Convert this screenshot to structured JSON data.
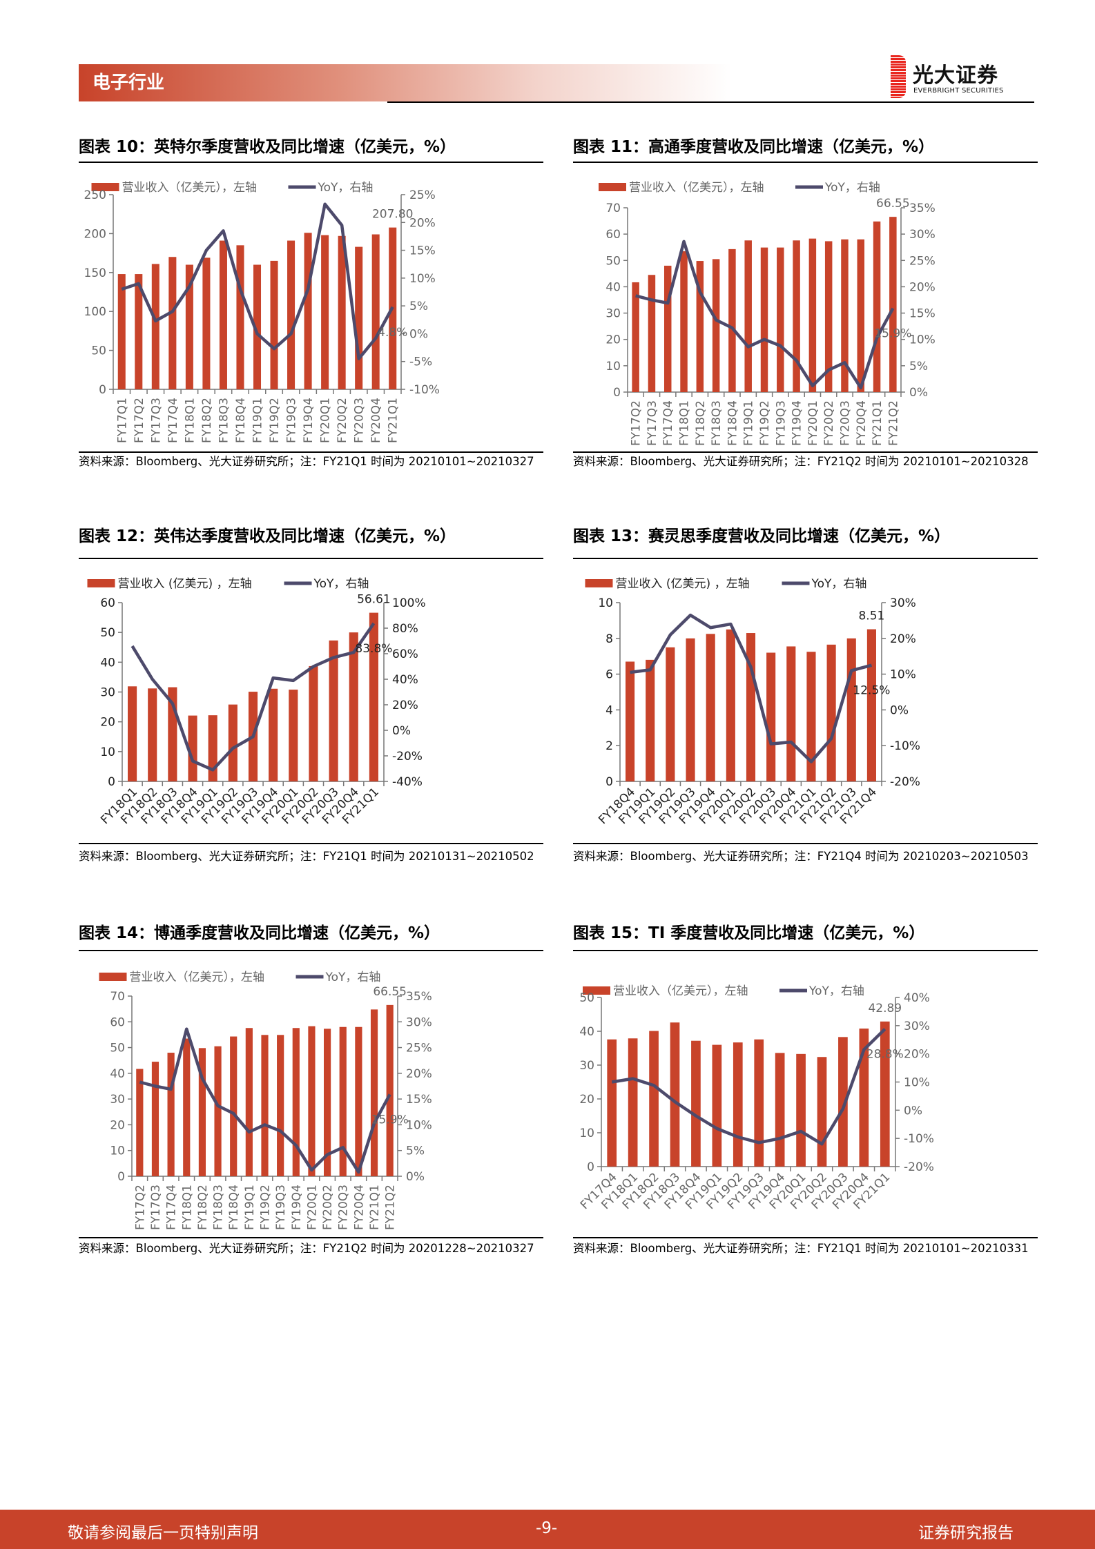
{
  "header": {
    "section": "电子行业",
    "logo_cn": "光大证券",
    "logo_en": "EVERBRIGHT SECURITIES"
  },
  "colors": {
    "bar": "#c8432a",
    "line": "#4d4a6b",
    "accent": "#c8432a"
  },
  "footer": {
    "left": "敬请参阅最后一页特别声明",
    "page": "-9-",
    "right": "证券研究报告"
  },
  "charts": [
    {
      "title": "图表 10：英特尔季度营收及同比增速（亿美元，%）",
      "source": "资料来源：Bloomberg、光大证券研究所；注：FY21Q1 时间为 20210101~20210327",
      "chart_data": {
        "type": "bar+line",
        "legend": [
          "营业收入（亿美元），左轴",
          "YoY，右轴"
        ],
        "categories": [
          "FY17Q1",
          "FY17Q2",
          "FY17Q3",
          "FY17Q4",
          "FY18Q1",
          "FY18Q2",
          "FY18Q3",
          "FY18Q4",
          "FY19Q1",
          "FY19Q2",
          "FY19Q3",
          "FY19Q4",
          "FY20Q1",
          "FY20Q2",
          "FY20Q3",
          "FY20Q4",
          "FY21Q1"
        ],
        "series": [
          {
            "name": "营业收入（亿美元），左轴",
            "type": "bar",
            "axis": "left",
            "values": [
              148,
              148,
              161,
              170,
              160,
              169,
              191,
              185,
              160,
              165,
              191,
              201,
              198,
              197,
              183,
              199,
              207.8
            ]
          },
          {
            "name": "YoY，右轴",
            "type": "line",
            "axis": "right",
            "values": [
              8,
              9,
              2.3,
              4,
              8.5,
              15,
              18.5,
              8,
              0,
              -2.7,
              0,
              8,
              23.3,
              19.5,
              -4.5,
              -0.8,
              4.8
            ]
          }
        ],
        "left_ylim": [
          0,
          250
        ],
        "left_ticks": [
          "0",
          "50",
          "100",
          "150",
          "200",
          "250"
        ],
        "right_ylim": [
          -10,
          25
        ],
        "right_ticks": [
          "-10%",
          "-5%",
          "0%",
          "5%",
          "10%",
          "15%",
          "20%",
          "25%"
        ],
        "bar_label": "207.80",
        "line_label": "4.8%"
      }
    },
    {
      "title": "图表 11：高通季度营收及同比增速（亿美元，%）",
      "source": "资料来源：Bloomberg、光大证券研究所；注：FY21Q2 时间为 20210101~20210328",
      "chart_data": {
        "type": "bar+line",
        "legend": [
          "营业收入（亿美元），左轴",
          "YoY，右轴"
        ],
        "categories": [
          "FY17Q2",
          "FY17Q3",
          "FY17Q4",
          "FY18Q1",
          "FY18Q2",
          "FY18Q3",
          "FY18Q4",
          "FY19Q1",
          "FY19Q2",
          "FY19Q3",
          "FY19Q4",
          "FY20Q1",
          "FY20Q2",
          "FY20Q3",
          "FY20Q4",
          "FY21Q1",
          "FY21Q2"
        ],
        "series": [
          {
            "name": "营业收入（亿美元），左轴",
            "type": "bar",
            "axis": "left",
            "values": [
              41.7,
              44.5,
              48,
              53.5,
              49.8,
              50.5,
              54.3,
              57.6,
              54.9,
              54.9,
              57.6,
              58.3,
              57.3,
              58,
              58,
              64.8,
              66.55
            ]
          },
          {
            "name": "YoY，右轴",
            "type": "line",
            "axis": "right",
            "values": [
              18.3,
              17.5,
              16.9,
              28.6,
              19,
              13.7,
              12.2,
              8.6,
              10,
              8.8,
              6,
              1.2,
              4.2,
              5.6,
              0.8,
              10.3,
              15.9
            ]
          }
        ],
        "left_ylim": [
          0,
          70
        ],
        "left_ticks": [
          "0",
          "10",
          "20",
          "30",
          "40",
          "50",
          "60",
          "70"
        ],
        "right_ylim": [
          0,
          35
        ],
        "right_ticks": [
          "0%",
          "5%",
          "10%",
          "15%",
          "20%",
          "25%",
          "30%",
          "35%"
        ],
        "bar_label": "66.55",
        "line_label": "15.9%"
      }
    },
    {
      "title": "图表 12：英伟达季度营收及同比增速（亿美元，%）",
      "source": "资料来源：Bloomberg、光大证券研究所；注：FY21Q1 时间为 20210131~20210502",
      "chart_data": {
        "type": "bar+line",
        "legend": [
          "营业收入 (亿美元) ，左轴",
          "YoY，右轴"
        ],
        "categories": [
          "FY18Q1",
          "FY18Q2",
          "FY18Q3",
          "FY18Q4",
          "FY19Q1",
          "FY19Q2",
          "FY19Q3",
          "FY19Q4",
          "FY20Q1",
          "FY20Q2",
          "FY20Q3",
          "FY20Q4",
          "FY21Q1"
        ],
        "series": [
          {
            "name": "营业收入 (亿美元) ，左轴",
            "type": "bar",
            "axis": "left",
            "values": [
              31.9,
              31.2,
              31.6,
              22.1,
              22.2,
              25.8,
              30.1,
              31.1,
              30.8,
              38.7,
              47.3,
              50,
              56.61
            ]
          },
          {
            "name": "YoY，右轴",
            "type": "line",
            "axis": "right",
            "values": [
              66,
              40,
              21,
              -24,
              -31,
              -14,
              -5,
              41,
              39,
              50,
              57,
              61,
              83.8
            ]
          }
        ],
        "left_ylim": [
          0,
          60
        ],
        "left_ticks": [
          "0",
          "10",
          "20",
          "30",
          "40",
          "50",
          "60"
        ],
        "right_ylim": [
          -40,
          100
        ],
        "right_ticks": [
          "-40%",
          "-20%",
          "0%",
          "20%",
          "40%",
          "60%",
          "80%",
          "100%"
        ],
        "bar_label": "56.61",
        "line_label": "83.8%"
      }
    },
    {
      "title": "图表 13：赛灵思季度营收及同比增速（亿美元，%）",
      "source": "资料来源：Bloomberg、光大证券研究所；注：FY21Q4 时间为 20210203~20210503",
      "chart_data": {
        "type": "bar+line",
        "legend": [
          "营业收入 (亿美元) ，左轴",
          "YoY，右轴"
        ],
        "categories": [
          "FY18Q4",
          "FY19Q1",
          "FY19Q2",
          "FY19Q3",
          "FY19Q4",
          "FY20Q1",
          "FY20Q2",
          "FY20Q3",
          "FY20Q4",
          "FY21Q1",
          "FY21Q2",
          "FY21Q3",
          "FY21Q4"
        ],
        "series": [
          {
            "name": "营业收入 (亿美元) ，左轴",
            "type": "bar",
            "axis": "left",
            "values": [
              6.7,
              6.8,
              7.5,
              8.0,
              8.25,
              8.5,
              8.3,
              7.2,
              7.55,
              7.25,
              7.65,
              8.0,
              8.51
            ]
          },
          {
            "name": "YoY，右轴",
            "type": "line",
            "axis": "right",
            "values": [
              10.5,
              11.2,
              21,
              26.5,
              23,
              24,
              12,
              -9.5,
              -9,
              -14.5,
              -8,
              11,
              12.5
            ]
          }
        ],
        "left_ylim": [
          0,
          10
        ],
        "left_ticks": [
          "0",
          "2",
          "4",
          "6",
          "8",
          "10"
        ],
        "right_ylim": [
          -20,
          30
        ],
        "right_ticks": [
          "-20%",
          "-10%",
          "0%",
          "10%",
          "20%",
          "30%"
        ],
        "bar_label": "8.51",
        "line_label": "12.5%"
      }
    },
    {
      "title": "图表 14：博通季度营收及同比增速（亿美元，%）",
      "source": "资料来源：Bloomberg、光大证券研究所；注：FY21Q2 时间为 20201228~20210327",
      "chart_data": {
        "type": "bar+line",
        "legend": [
          "营业收入（亿美元），左轴",
          "YoY，右轴"
        ],
        "categories": [
          "FY17Q2",
          "FY17Q3",
          "FY17Q4",
          "FY18Q1",
          "FY18Q2",
          "FY18Q3",
          "FY18Q4",
          "FY19Q1",
          "FY19Q2",
          "FY19Q3",
          "FY19Q4",
          "FY20Q1",
          "FY20Q2",
          "FY20Q3",
          "FY20Q4",
          "FY21Q1",
          "FY21Q2"
        ],
        "series": [
          {
            "name": "营业收入（亿美元），左轴",
            "type": "bar",
            "axis": "left",
            "values": [
              41.7,
              44.5,
              48,
              53.5,
              49.8,
              50.5,
              54.3,
              57.6,
              54.9,
              54.9,
              57.6,
              58.3,
              57.3,
              58,
              58,
              64.8,
              66.55
            ]
          },
          {
            "name": "YoY，右轴",
            "type": "line",
            "axis": "right",
            "values": [
              18.3,
              17.5,
              16.9,
              28.6,
              19,
              13.7,
              12.2,
              8.6,
              10,
              8.8,
              6,
              1.2,
              4.2,
              5.6,
              0.8,
              10.3,
              15.9
            ]
          }
        ],
        "left_ylim": [
          0,
          70
        ],
        "left_ticks": [
          "0",
          "10",
          "20",
          "30",
          "40",
          "50",
          "60",
          "70"
        ],
        "right_ylim": [
          0,
          35
        ],
        "right_ticks": [
          "0%",
          "5%",
          "10%",
          "15%",
          "20%",
          "25%",
          "30%",
          "35%"
        ],
        "bar_label": "66.55",
        "line_label": "15.9%"
      }
    },
    {
      "title": "图表 15：TI 季度营收及同比增速（亿美元，%）",
      "source": "资料来源：Bloomberg、光大证券研究所；注：FY21Q1 时间为 20210101~20210331",
      "chart_data": {
        "type": "bar+line",
        "legend": [
          "营业收入（亿美元），左轴",
          "YoY，右轴"
        ],
        "categories": [
          "FY17Q4",
          "FY18Q1",
          "FY18Q2",
          "FY18Q3",
          "FY18Q4",
          "FY19Q1",
          "FY19Q2",
          "FY19Q3",
          "FY19Q4",
          "FY20Q1",
          "FY20Q2",
          "FY20Q3",
          "FY20Q4",
          "FY21Q1"
        ],
        "series": [
          {
            "name": "营业收入（亿美元），左轴",
            "type": "bar",
            "axis": "left",
            "values": [
              37.6,
              37.9,
              40.1,
              42.6,
              37.2,
              36.0,
              36.7,
              37.6,
              33.6,
              33.3,
              32.4,
              38.3,
              40.8,
              42.89
            ]
          },
          {
            "name": "YoY，右轴",
            "type": "line",
            "axis": "right",
            "values": [
              10,
              11.2,
              8.8,
              3,
              -2,
              -6.5,
              -9.5,
              -11.5,
              -10,
              -7.5,
              -12,
              0.5,
              21.5,
              28.8
            ]
          }
        ],
        "left_ylim": [
          0,
          50
        ],
        "left_ticks": [
          "0",
          "10",
          "20",
          "30",
          "40",
          "50"
        ],
        "right_ylim": [
          -20,
          40
        ],
        "right_ticks": [
          "-20%",
          "-10%",
          "0%",
          "10%",
          "20%",
          "30%",
          "40%"
        ],
        "bar_label": "42.89",
        "line_label": "28.8%"
      }
    }
  ]
}
